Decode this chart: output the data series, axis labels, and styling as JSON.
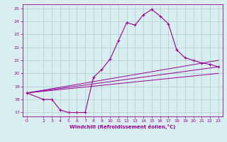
{
  "xlabel": "Windchill (Refroidissement éolien,°C)",
  "ylabel": "",
  "background_color": "#d8eef0",
  "line_color": "#990099",
  "grid_color": "#aacccc",
  "xlim": [
    -0.5,
    23.5
  ],
  "ylim": [
    16.7,
    25.3
  ],
  "yticks": [
    17,
    18,
    19,
    20,
    21,
    22,
    23,
    24,
    25
  ],
  "xticks": [
    0,
    2,
    3,
    4,
    5,
    6,
    7,
    8,
    9,
    10,
    11,
    12,
    13,
    14,
    15,
    16,
    17,
    18,
    19,
    20,
    21,
    22,
    23
  ],
  "line1_x": [
    0,
    2,
    3,
    4,
    5,
    6,
    7,
    8,
    9,
    10,
    11,
    12,
    13,
    14,
    15,
    16,
    17,
    18,
    19,
    20,
    21,
    22,
    23
  ],
  "line1_y": [
    18.5,
    18.0,
    18.0,
    17.2,
    17.0,
    17.0,
    17.0,
    19.7,
    20.3,
    21.1,
    22.5,
    23.9,
    23.7,
    24.5,
    24.9,
    24.4,
    23.8,
    21.8,
    21.2,
    21.0,
    20.8,
    20.7,
    20.5
  ],
  "line2_x": [
    0,
    23
  ],
  "line2_y": [
    18.5,
    20.5
  ],
  "line3_x": [
    0,
    23
  ],
  "line3_y": [
    18.5,
    21.0
  ],
  "line4_x": [
    0,
    23
  ],
  "line4_y": [
    18.5,
    20.0
  ]
}
